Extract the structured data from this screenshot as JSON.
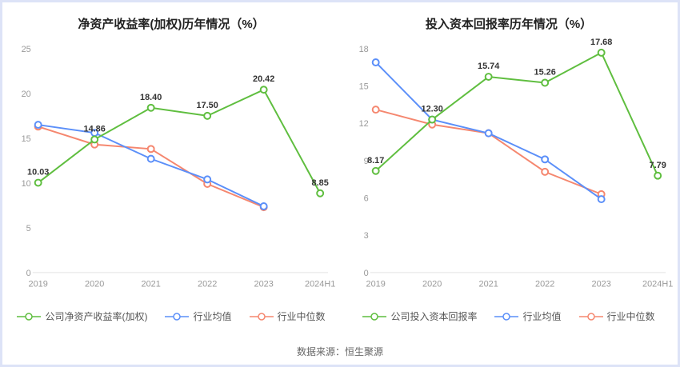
{
  "page": {
    "source_text": "数据来源：恒生聚源",
    "background_color": "#ffffff",
    "frame_border_color": "#dde3f7"
  },
  "charts": [
    {
      "title": "净资产收益率(加权)历年情况（%）",
      "chart_data": {
        "type": "line",
        "categories": [
          "2019",
          "2020",
          "2021",
          "2022",
          "2023",
          "2024H1"
        ],
        "ylim": [
          0,
          25
        ],
        "yticks": [
          0,
          5,
          10,
          15,
          20,
          25
        ],
        "grid": false,
        "legend_position": "bottom",
        "series": [
          {
            "name": "公司净资产收益率(加权)",
            "color": "#5fbe3f",
            "values": [
              10.03,
              14.86,
              18.4,
              17.5,
              20.42,
              8.85
            ],
            "labels": [
              "10.03",
              "14.86",
              "18.40",
              "17.50",
              "20.42",
              "8.85"
            ]
          },
          {
            "name": "行业均值",
            "color": "#5b8ff9",
            "values": [
              16.5,
              15.6,
              12.7,
              10.4,
              7.4,
              null
            ]
          },
          {
            "name": "行业中位数",
            "color": "#f5876f",
            "values": [
              16.3,
              14.3,
              13.8,
              9.9,
              7.3,
              null
            ]
          }
        ]
      }
    },
    {
      "title": "投入资本回报率历年情况（%）",
      "chart_data": {
        "type": "line",
        "categories": [
          "2019",
          "2020",
          "2021",
          "2022",
          "2023",
          "2024H1"
        ],
        "ylim": [
          0,
          18
        ],
        "yticks": [
          0,
          3,
          6,
          9,
          12,
          15,
          18
        ],
        "grid": false,
        "legend_position": "bottom",
        "series": [
          {
            "name": "公司投入资本回报率",
            "color": "#5fbe3f",
            "values": [
              8.17,
              12.3,
              15.74,
              15.26,
              17.68,
              7.79
            ],
            "labels": [
              "8.17",
              "12.30",
              "15.74",
              "15.26",
              "17.68",
              "7.79"
            ]
          },
          {
            "name": "行业均值",
            "color": "#5b8ff9",
            "values": [
              16.9,
              12.3,
              11.2,
              9.1,
              5.9,
              null
            ]
          },
          {
            "name": "行业中位数",
            "color": "#f5876f",
            "values": [
              13.1,
              11.9,
              11.2,
              8.1,
              6.3,
              null
            ]
          }
        ]
      }
    }
  ],
  "style": {
    "axis_label_color": "#999999",
    "data_label_color": "#333333",
    "baseline_color": "#e4e4e4"
  }
}
